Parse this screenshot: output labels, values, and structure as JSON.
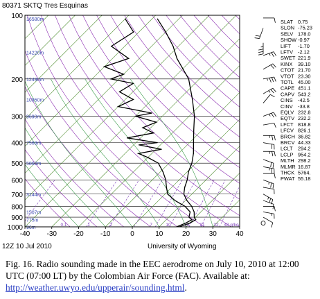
{
  "chart_data": {
    "type": "line",
    "title": "80371 SKTQ Tres Esquinas",
    "subtitle": "12Z 10 Jul 2010",
    "credit": "University of Wyoming",
    "x_axis": {
      "ticks": [
        "-40",
        "-30",
        "-20",
        "-10",
        "0",
        "10",
        "20",
        "30",
        "40"
      ],
      "range": [
        -40,
        40
      ]
    },
    "y_axis": {
      "scale": "log",
      "reversed": true,
      "ticks": [
        "100",
        "200",
        "300",
        "400",
        "500",
        "600",
        "700",
        "800",
        "900",
        "1000"
      ],
      "range": [
        100,
        1000
      ]
    },
    "height_labels": [
      {
        "p": 104,
        "text": "16580m"
      },
      {
        "p": 150,
        "text": "14220m"
      },
      {
        "p": 200,
        "text": "12490m"
      },
      {
        "p": 250,
        "text": "10950m"
      },
      {
        "p": 300,
        "text": "9690m"
      },
      {
        "p": 400,
        "text": "7568m"
      },
      {
        "p": 500,
        "text": "5860m"
      },
      {
        "p": 700,
        "text": "3144m"
      },
      {
        "p": 850,
        "text": "1507m"
      },
      {
        "p": 925,
        "text": "775m"
      },
      {
        "p": 1000,
        "text": "96m"
      }
    ],
    "mixing_ratio_labels": [
      "0.1",
      "1",
      "2",
      "7",
      "10",
      "16",
      "21",
      "32",
      "48 g/kg"
    ],
    "series": [
      {
        "name": "Temperature",
        "color": "#000000",
        "points": [
          [
            17.5,
            1000
          ],
          [
            20,
            960
          ],
          [
            21,
            925
          ],
          [
            19.5,
            900
          ],
          [
            17.5,
            850
          ],
          [
            14.5,
            800
          ],
          [
            10.5,
            750
          ],
          [
            7,
            700
          ],
          [
            4.8,
            650
          ],
          [
            3,
            600
          ],
          [
            0.5,
            550
          ],
          [
            -1.5,
            500
          ],
          [
            -4.5,
            450
          ],
          [
            -8.5,
            400
          ],
          [
            -13,
            350
          ],
          [
            -18,
            300
          ],
          [
            -25,
            250
          ],
          [
            -34,
            200
          ],
          [
            -46,
            160
          ],
          [
            -52,
            140
          ],
          [
            -60,
            120
          ],
          [
            -68,
            104
          ]
        ]
      },
      {
        "name": "Dewpoint",
        "color": "#000000",
        "points": [
          [
            16.5,
            1000
          ],
          [
            18.5,
            960
          ],
          [
            19.5,
            925
          ],
          [
            17.5,
            900
          ],
          [
            16,
            850
          ],
          [
            12,
            800
          ],
          [
            6,
            750
          ],
          [
            1,
            700
          ],
          [
            -2,
            650
          ],
          [
            -5,
            600
          ],
          [
            -9,
            550
          ],
          [
            -14,
            500
          ],
          [
            -20,
            470
          ],
          [
            -25,
            450
          ],
          [
            -18,
            430
          ],
          [
            -28,
            410
          ],
          [
            -22,
            400
          ],
          [
            -35,
            380
          ],
          [
            -27,
            360
          ],
          [
            -33,
            340
          ],
          [
            -30,
            320
          ],
          [
            -40,
            300
          ],
          [
            -35,
            290
          ],
          [
            -50,
            270
          ],
          [
            -47,
            250
          ],
          [
            -55,
            230
          ],
          [
            -53,
            210
          ],
          [
            -63,
            200
          ],
          [
            -60,
            190
          ],
          [
            -70,
            175
          ],
          [
            -64,
            160
          ],
          [
            -75,
            140
          ],
          [
            -72,
            120
          ],
          [
            -80,
            104
          ]
        ]
      }
    ],
    "indices": [
      [
        "SLAT",
        "0.75"
      ],
      [
        "SLON",
        "-75.23"
      ],
      [
        "SELV",
        "178.0"
      ],
      [
        "SHOW",
        "-0.97"
      ],
      [
        "LIFT",
        "-1.70"
      ],
      [
        "LFTV",
        "-2.12"
      ],
      [
        "SWET",
        "221.9"
      ],
      [
        "KINX",
        "39.10"
      ],
      [
        "CTOT",
        "21.70"
      ],
      [
        "VTOT",
        "23.30"
      ],
      [
        "TOTL",
        "45.00"
      ],
      [
        "CAPE",
        "451.1"
      ],
      [
        "CAPV",
        "543.2"
      ],
      [
        "CINS",
        "-42.5"
      ],
      [
        "CINV",
        "-33.8"
      ],
      [
        "EQLV",
        "232.8"
      ],
      [
        "EQTV",
        "232.2"
      ],
      [
        "LFCT",
        "818.8"
      ],
      [
        "LFCV",
        "826.1"
      ],
      [
        "BRCH",
        "36.82"
      ],
      [
        "BRCV",
        "44.33"
      ],
      [
        "LCLT",
        "294.2"
      ],
      [
        "LCLP",
        "954.2"
      ],
      [
        "MLTH",
        "298.2"
      ],
      [
        "MLMR",
        "16.87"
      ],
      [
        "THCK",
        "5764."
      ],
      [
        "PWAT",
        "55.18"
      ]
    ],
    "wind_barbs": [
      {
        "p": 103,
        "dir": 90,
        "kt": 10
      },
      {
        "p": 115,
        "dir": 200,
        "kt": 20
      },
      {
        "p": 135,
        "dir": 180,
        "kt": 25
      },
      {
        "p": 155,
        "dir": 70,
        "kt": 15
      },
      {
        "p": 180,
        "dir": 60,
        "kt": 20
      },
      {
        "p": 200,
        "dir": 80,
        "kt": 25
      },
      {
        "p": 235,
        "dir": 60,
        "kt": 15
      },
      {
        "p": 260,
        "dir": 40,
        "kt": 10
      },
      {
        "p": 300,
        "dir": 70,
        "kt": 15
      },
      {
        "p": 330,
        "dir": 80,
        "kt": 10
      },
      {
        "p": 370,
        "dir": 90,
        "kt": 15
      },
      {
        "p": 400,
        "dir": 100,
        "kt": 20
      },
      {
        "p": 440,
        "dir": 90,
        "kt": 15
      },
      {
        "p": 480,
        "dir": 110,
        "kt": 20
      },
      {
        "p": 520,
        "dir": 100,
        "kt": 15
      },
      {
        "p": 560,
        "dir": 90,
        "kt": 10
      },
      {
        "p": 600,
        "dir": 110,
        "kt": 15
      },
      {
        "p": 650,
        "dir": 100,
        "kt": 10
      },
      {
        "p": 700,
        "dir": 120,
        "kt": 15
      },
      {
        "p": 750,
        "dir": 110,
        "kt": 10
      },
      {
        "p": 800,
        "dir": 90,
        "kt": 10
      },
      {
        "p": 850,
        "dir": 100,
        "kt": 5
      },
      {
        "p": 900,
        "dir": 120,
        "kt": 10
      },
      {
        "p": 960,
        "dir": 0,
        "kt": 0
      }
    ],
    "colors": {
      "frame": "#000000",
      "isotherm": "#4a8a2a",
      "dry_adiabat": "#8a2ab0",
      "moist_adiabat": "#3a9a4a",
      "mixing_ratio": "#7a3ab8",
      "height": "#3a4ab0"
    }
  },
  "caption": {
    "text": "Fig. 16. Radio sounding made in the EEC aerodrome on July 10, 2010 at 12:00 UTC (07:00 LT) by the Colombian Air Force (FAC). Available at:",
    "link": "http://weather.uwyo.edu/upperair/sounding.html",
    "trailing": "."
  }
}
